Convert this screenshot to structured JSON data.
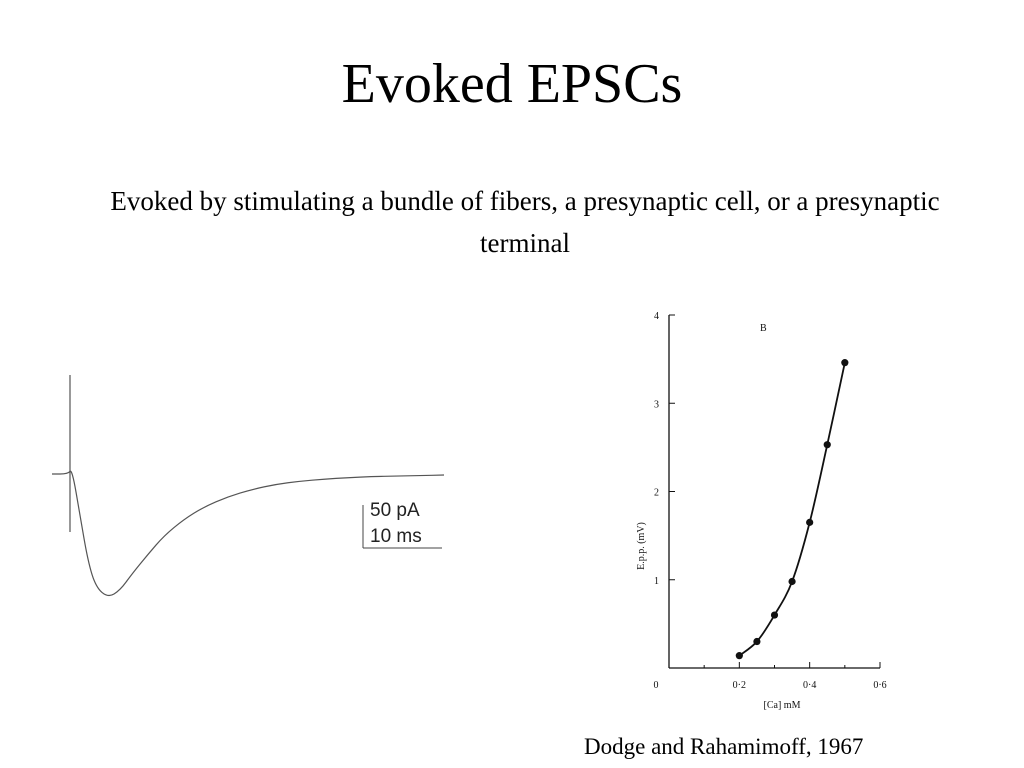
{
  "slide": {
    "title": "Evoked EPSCs",
    "subtitle": "Evoked by stimulating a bundle of fibers, a presynaptic cell, or a presynaptic terminal",
    "citation": "Dodge and Rahamimoff, 1967"
  },
  "chart_data": [
    {
      "type": "line",
      "description_kind": "current-trace",
      "scale_bar": {
        "amplitude_label": "50 pA",
        "time_label": "10 ms"
      },
      "series": [
        {
          "x": [
            0,
            4,
            5,
            7,
            9,
            11,
            14,
            17,
            20,
            24,
            28,
            33,
            38,
            44,
            50,
            56,
            62,
            68,
            74,
            80,
            86,
            92,
            98
          ],
          "values": [
            0,
            0,
            5,
            -40,
            -85,
            -110,
            -120,
            -113,
            -97,
            -78,
            -60,
            -44,
            -32,
            -22,
            -15,
            -10,
            -7,
            -5,
            -3.5,
            -2.5,
            -2,
            -1.5,
            -1
          ]
        }
      ],
      "stimulus_artifact_x": 4.5
    },
    {
      "type": "line",
      "title": "B",
      "xlabel": "[Ca] mM",
      "ylabel": "E.p.p. (mV)",
      "xlim": [
        0,
        0.6
      ],
      "ylim": [
        0,
        4
      ],
      "xticks": [
        "0",
        "0·2",
        "0·4",
        "0·6"
      ],
      "yticks": [
        "1",
        "2",
        "3",
        "4"
      ],
      "series": [
        {
          "x": [
            0.2,
            0.25,
            0.3,
            0.35,
            0.4,
            0.45,
            0.5
          ],
          "values": [
            0.14,
            0.3,
            0.6,
            0.98,
            1.65,
            2.53,
            3.46
          ]
        }
      ]
    }
  ]
}
